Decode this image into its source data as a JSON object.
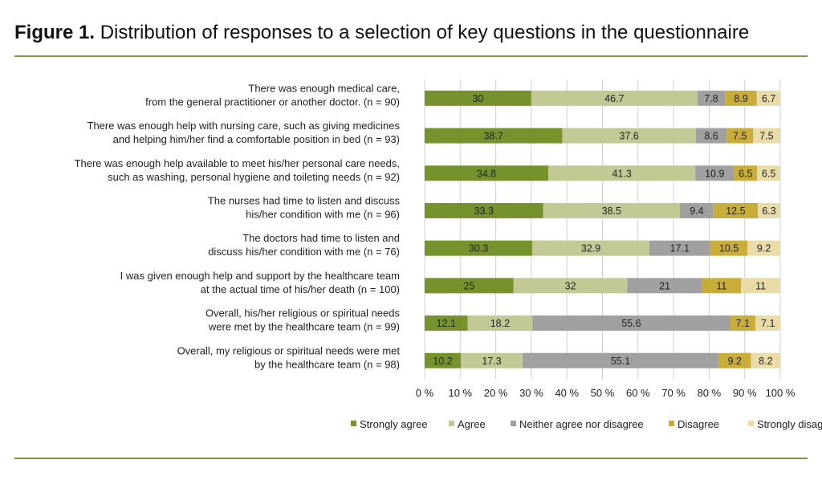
{
  "figure": {
    "label": "Figure 1.",
    "caption": "Distribution of responses to a selection of key questions in the questionnaire"
  },
  "chart_data": {
    "type": "bar",
    "orientation": "horizontal",
    "stacked": "100%",
    "categories": [
      [
        "There was enough medical care,",
        "from the general practitioner or another doctor. (n = 90)"
      ],
      [
        "There was enough help with nursing care, such as giving medicines",
        "and helping him/her find a comfortable position in bed (n = 93)"
      ],
      [
        "There was enough help available to meet his/her personal care needs,",
        "such as washing, personal hygiene and toileting needs (n = 92)"
      ],
      [
        "The nurses had time to listen and discuss",
        "his/her condition with me (n = 96)"
      ],
      [
        "The doctors had time to listen and",
        "discuss his/her condition with me (n = 76)"
      ],
      [
        "I was given enough help and support by the healthcare team",
        "at the actual time of his/her death (n = 100)"
      ],
      [
        "Overall,  his/her religious or spiritual needs",
        "were met by the healthcare team (n = 99)"
      ],
      [
        "Overall, my religious or spiritual needs were met",
        "by the healthcare team (n = 98)"
      ]
    ],
    "series": [
      {
        "name": "Strongly agree",
        "color": "#76922d",
        "values": [
          30,
          38.7,
          34.8,
          33.3,
          30.3,
          25,
          12.1,
          10.2
        ]
      },
      {
        "name": "Agree",
        "color": "#c3c995",
        "values": [
          46.7,
          37.6,
          41.3,
          38.5,
          32.9,
          32,
          18.2,
          17.3
        ]
      },
      {
        "name": "Neither agree nor disagree",
        "color": "#a0a0a0",
        "values": [
          7.8,
          8.6,
          10.9,
          9.4,
          17.1,
          21,
          55.6,
          55.1
        ]
      },
      {
        "name": "Disagree",
        "color": "#c9ad3b",
        "values": [
          8.9,
          7.5,
          6.5,
          12.5,
          10.5,
          11,
          7.1,
          9.2
        ]
      },
      {
        "name": "Strongly disagree",
        "color": "#eadca8",
        "values": [
          6.7,
          7.5,
          6.5,
          6.3,
          9.2,
          11,
          7.1,
          8.2
        ]
      }
    ],
    "xlim": [
      0,
      100
    ],
    "x_tick_labels": [
      "0 %",
      "10 %",
      "20 %",
      "30 %",
      "40 %",
      "50 %",
      "60 %",
      "70 %",
      "80 %",
      "90 %",
      "100 %"
    ],
    "grid": "vertical",
    "legend_position": "bottom",
    "data_labels": true
  }
}
